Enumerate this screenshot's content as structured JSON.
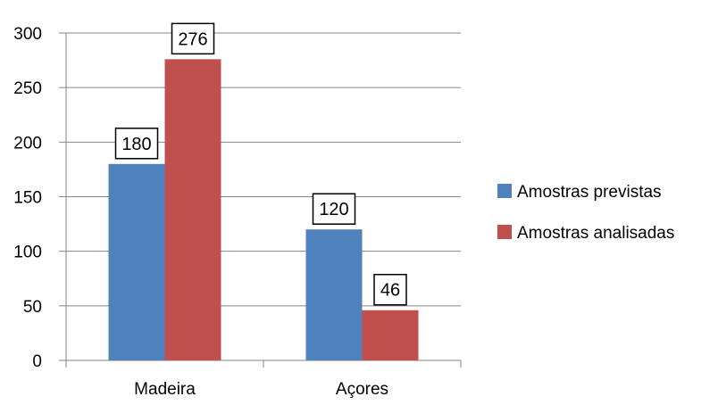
{
  "chart_data": {
    "type": "bar",
    "categories": [
      "Madeira",
      "Açores"
    ],
    "series": [
      {
        "name": "Amostras previstas",
        "values": [
          180,
          120
        ],
        "color": "#4f81bd"
      },
      {
        "name": "Amostras analisadas",
        "values": [
          276,
          46
        ],
        "color": "#c0504d"
      }
    ],
    "ylim": [
      0,
      300
    ],
    "yticks": [
      0,
      50,
      100,
      150,
      200,
      250,
      300
    ],
    "ytick_labels": [
      "0",
      "50",
      "100",
      "150",
      "200",
      "250",
      "300"
    ],
    "data_labels": [
      [
        "180",
        "120"
      ],
      [
        "276",
        "46"
      ]
    ],
    "grid": true,
    "legend_position": "right",
    "title": "",
    "xlabel": "",
    "ylabel": ""
  }
}
